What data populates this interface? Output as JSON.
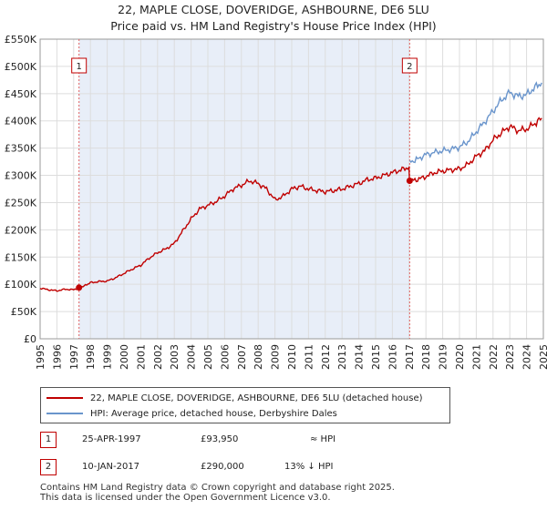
{
  "title": "22, MAPLE CLOSE, DOVERIDGE, ASHBOURNE, DE6 5LU",
  "subtitle": "Price paid vs. HM Land Registry's House Price Index (HPI)",
  "colors": {
    "property": "#c00000",
    "hpi": "#6a95cc",
    "grid": "#dddddd",
    "shade": "#e8eef8",
    "marker_line": "#e06060"
  },
  "chart_data": {
    "type": "line",
    "title": "22, MAPLE CLOSE, DOVERIDGE, ASHBOURNE, DE6 5LU",
    "subtitle": "Price paid vs. HM Land Registry's House Price Index (HPI)",
    "xlabel": "",
    "ylabel": "",
    "xlim": [
      1995,
      2025
    ],
    "ylim": [
      0,
      550000
    ],
    "grid": true,
    "y_ticks": [
      {
        "value": 0,
        "label": "£0"
      },
      {
        "value": 50000,
        "label": "£50K"
      },
      {
        "value": 100000,
        "label": "£100K"
      },
      {
        "value": 150000,
        "label": "£150K"
      },
      {
        "value": 200000,
        "label": "£200K"
      },
      {
        "value": 250000,
        "label": "£250K"
      },
      {
        "value": 300000,
        "label": "£300K"
      },
      {
        "value": 350000,
        "label": "£350K"
      },
      {
        "value": 400000,
        "label": "£400K"
      },
      {
        "value": 450000,
        "label": "£450K"
      },
      {
        "value": 500000,
        "label": "£500K"
      },
      {
        "value": 550000,
        "label": "£550K"
      }
    ],
    "x_ticks": [
      "1995",
      "1996",
      "1997",
      "1998",
      "1999",
      "2000",
      "2001",
      "2002",
      "2003",
      "2004",
      "2005",
      "2006",
      "2007",
      "2008",
      "2009",
      "2010",
      "2011",
      "2012",
      "2013",
      "2014",
      "2015",
      "2016",
      "2017",
      "2018",
      "2019",
      "2020",
      "2021",
      "2022",
      "2023",
      "2024",
      "2025"
    ],
    "series": [
      {
        "name": "22, MAPLE CLOSE, DOVERIDGE, ASHBOURNE, DE6 5LU (detached house)",
        "color": "#c00000",
        "points": [
          [
            1995.0,
            93000
          ],
          [
            1995.5,
            90000
          ],
          [
            1996.0,
            88000
          ],
          [
            1996.5,
            91000
          ],
          [
            1997.0,
            90000
          ],
          [
            1997.32,
            93950
          ],
          [
            1997.7,
            98000
          ],
          [
            1998.0,
            103000
          ],
          [
            1998.5,
            105000
          ],
          [
            1999.0,
            106000
          ],
          [
            1999.5,
            112000
          ],
          [
            2000.0,
            120000
          ],
          [
            2000.5,
            128000
          ],
          [
            2001.0,
            135000
          ],
          [
            2001.5,
            148000
          ],
          [
            2002.0,
            158000
          ],
          [
            2002.5,
            165000
          ],
          [
            2003.0,
            175000
          ],
          [
            2003.5,
            198000
          ],
          [
            2004.0,
            220000
          ],
          [
            2004.5,
            238000
          ],
          [
            2005.0,
            245000
          ],
          [
            2005.5,
            252000
          ],
          [
            2006.0,
            262000
          ],
          [
            2006.5,
            275000
          ],
          [
            2007.0,
            282000
          ],
          [
            2007.5,
            290000
          ],
          [
            2008.0,
            285000
          ],
          [
            2008.5,
            275000
          ],
          [
            2009.0,
            255000
          ],
          [
            2009.5,
            262000
          ],
          [
            2010.0,
            275000
          ],
          [
            2010.5,
            280000
          ],
          [
            2011.0,
            275000
          ],
          [
            2011.5,
            272000
          ],
          [
            2012.0,
            270000
          ],
          [
            2012.5,
            272000
          ],
          [
            2013.0,
            275000
          ],
          [
            2013.5,
            280000
          ],
          [
            2014.0,
            285000
          ],
          [
            2014.5,
            292000
          ],
          [
            2015.0,
            295000
          ],
          [
            2015.5,
            300000
          ],
          [
            2016.0,
            305000
          ],
          [
            2016.5,
            310000
          ],
          [
            2016.99,
            315000
          ],
          [
            2017.03,
            290000
          ],
          [
            2017.5,
            292000
          ],
          [
            2018.0,
            298000
          ],
          [
            2018.5,
            305000
          ],
          [
            2019.0,
            308000
          ],
          [
            2019.5,
            310000
          ],
          [
            2020.0,
            312000
          ],
          [
            2020.5,
            320000
          ],
          [
            2021.0,
            335000
          ],
          [
            2021.5,
            345000
          ],
          [
            2022.0,
            365000
          ],
          [
            2022.5,
            378000
          ],
          [
            2023.0,
            390000
          ],
          [
            2023.5,
            382000
          ],
          [
            2024.0,
            385000
          ],
          [
            2024.5,
            395000
          ],
          [
            2024.9,
            405000
          ]
        ]
      },
      {
        "name": "HPI: Average price, detached house, Derbyshire Dales",
        "color": "#6a95cc",
        "points": [
          [
            2017.03,
            323000
          ],
          [
            2017.5,
            330000
          ],
          [
            2018.0,
            338000
          ],
          [
            2018.5,
            342000
          ],
          [
            2019.0,
            345000
          ],
          [
            2019.5,
            348000
          ],
          [
            2020.0,
            352000
          ],
          [
            2020.5,
            362000
          ],
          [
            2021.0,
            380000
          ],
          [
            2021.5,
            398000
          ],
          [
            2022.0,
            418000
          ],
          [
            2022.5,
            438000
          ],
          [
            2023.0,
            452000
          ],
          [
            2023.5,
            445000
          ],
          [
            2024.0,
            448000
          ],
          [
            2024.5,
            462000
          ],
          [
            2024.9,
            470000
          ]
        ]
      }
    ],
    "sales": [
      {
        "id": "1",
        "x": 1997.32,
        "value": 93950
      },
      {
        "id": "2",
        "x": 2017.03,
        "value": 290000
      }
    ]
  },
  "legend": {
    "property_label": "22, MAPLE CLOSE, DOVERIDGE, ASHBOURNE, DE6 5LU (detached house)",
    "hpi_label": "HPI: Average price, detached house, Derbyshire Dales"
  },
  "sales_table": [
    {
      "id": "1",
      "date": "25-APR-1997",
      "price": "£93,950",
      "hpi": "≈ HPI"
    },
    {
      "id": "2",
      "date": "10-JAN-2017",
      "price": "£290,000",
      "hpi": "13% ↓ HPI"
    }
  ],
  "footer": {
    "line1": "Contains HM Land Registry data © Crown copyright and database right 2025.",
    "line2": "This data is licensed under the Open Government Licence v3.0."
  }
}
